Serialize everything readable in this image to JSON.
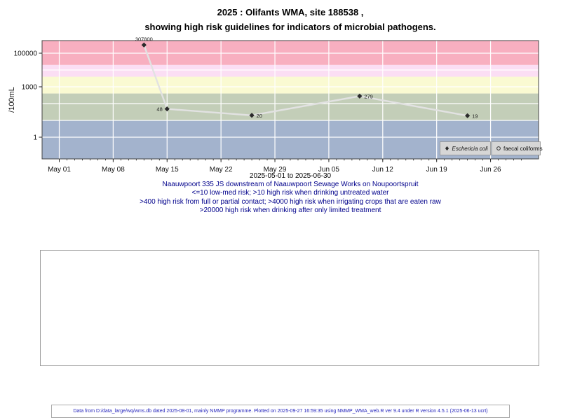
{
  "title": {
    "line1": "2025 : Olifants WMA, site 188538 ,",
    "line2": "showing high risk guidelines for indicators of microbial pathogens."
  },
  "captions": [
    "2025-05-01 to 2025-06-30",
    "Naauwpoort 335 JS downstream of Naauwpoort Sewage Works on Noupoortspruit",
    "<=10 low-med risk; >10 high risk when drinking untreated water",
    ">400 high risk from full or partial contact; >4000 high risk when irrigating crops that are eaten raw",
    ">20000 high risk when drinking after only limited treatment"
  ],
  "footer": {
    "text": "Data from D:/data_large/wq/wms.db dated 2025-08-01, mainly NMMP programme. Plotted on 2025-09-27 16:59:35 using NMMP_WMA_web.R ver 9.4 under R version 4.5.1 (2025-06-13 ucrt)"
  },
  "chart_data": {
    "type": "line",
    "title": "2025 : Olifants WMA, site 188538, showing high risk guidelines for indicators of microbial pathogens.",
    "xlabel": "",
    "ylabel": "/100mL",
    "y_scale": "log10",
    "ylim": [
      0.05,
      575000
    ],
    "x_domain": [
      "2025-05-01",
      "2025-06-30"
    ],
    "x_ticks": [
      {
        "date": "2025-05-01",
        "label": "May 01"
      },
      {
        "date": "2025-05-08",
        "label": "May 08"
      },
      {
        "date": "2025-05-15",
        "label": "May 15"
      },
      {
        "date": "2025-05-22",
        "label": "May 22"
      },
      {
        "date": "2025-05-29",
        "label": "May 29"
      },
      {
        "date": "2025-06-05",
        "label": "Jun 05"
      },
      {
        "date": "2025-06-12",
        "label": "Jun 12"
      },
      {
        "date": "2025-06-19",
        "label": "Jun 19"
      },
      {
        "date": "2025-06-26",
        "label": "Jun 26"
      }
    ],
    "x_minor_tick_days": 1,
    "y_ticks": [
      {
        "value": 1,
        "label": "1"
      },
      {
        "value": 1000,
        "label": "1000"
      },
      {
        "value": 100000,
        "label": "100000"
      }
    ],
    "y_gridlines": [
      1,
      10,
      100,
      1000,
      10000,
      100000
    ],
    "grid": "white-on-bands",
    "bands": [
      {
        "name": "low-med-risk",
        "from": 0.05,
        "to": 10,
        "color": "#A3B3CD"
      },
      {
        "name": "high-risk-drinking-untreated-water",
        "from": 10,
        "to": 400,
        "color": "#C3CEB8"
      },
      {
        "name": "high-risk-full-or-partial-contact",
        "from": 400,
        "to": 4000,
        "color": "#FAFAD2"
      },
      {
        "name": "high-risk-irrigating-crops-eaten-raw",
        "from": 4000,
        "to": 20000,
        "color": "#FBDEF4"
      },
      {
        "name": "high-risk-drinking-after-limited-treatment",
        "from": 20000,
        "to": 575000,
        "color": "#F8AFC0"
      }
    ],
    "series": [
      {
        "name": "Eschericia coli",
        "marker": "filled-diamond",
        "line_color": "#E2E2E2",
        "points": [
          {
            "date": "2025-05-12",
            "value": 307800,
            "label": "307800",
            "label_side": "top"
          },
          {
            "date": "2025-05-15",
            "value": 48,
            "label": "48",
            "label_side": "left"
          },
          {
            "date": "2025-05-26",
            "value": 20,
            "label": "20",
            "label_side": "right"
          },
          {
            "date": "2025-06-09",
            "value": 279,
            "label": "279",
            "label_side": "right"
          },
          {
            "date": "2025-06-23",
            "value": 19,
            "label": "19",
            "label_side": "right"
          }
        ]
      },
      {
        "name": "faecal coliforms",
        "marker": "open-circle",
        "points": []
      }
    ],
    "legend": {
      "position": "bottom-right",
      "entries": [
        {
          "label": "Eschericia coli",
          "marker": "filled-diamond",
          "italic": true
        },
        {
          "label": "faecal coliforms",
          "marker": "open-circle",
          "italic": false
        }
      ]
    }
  }
}
